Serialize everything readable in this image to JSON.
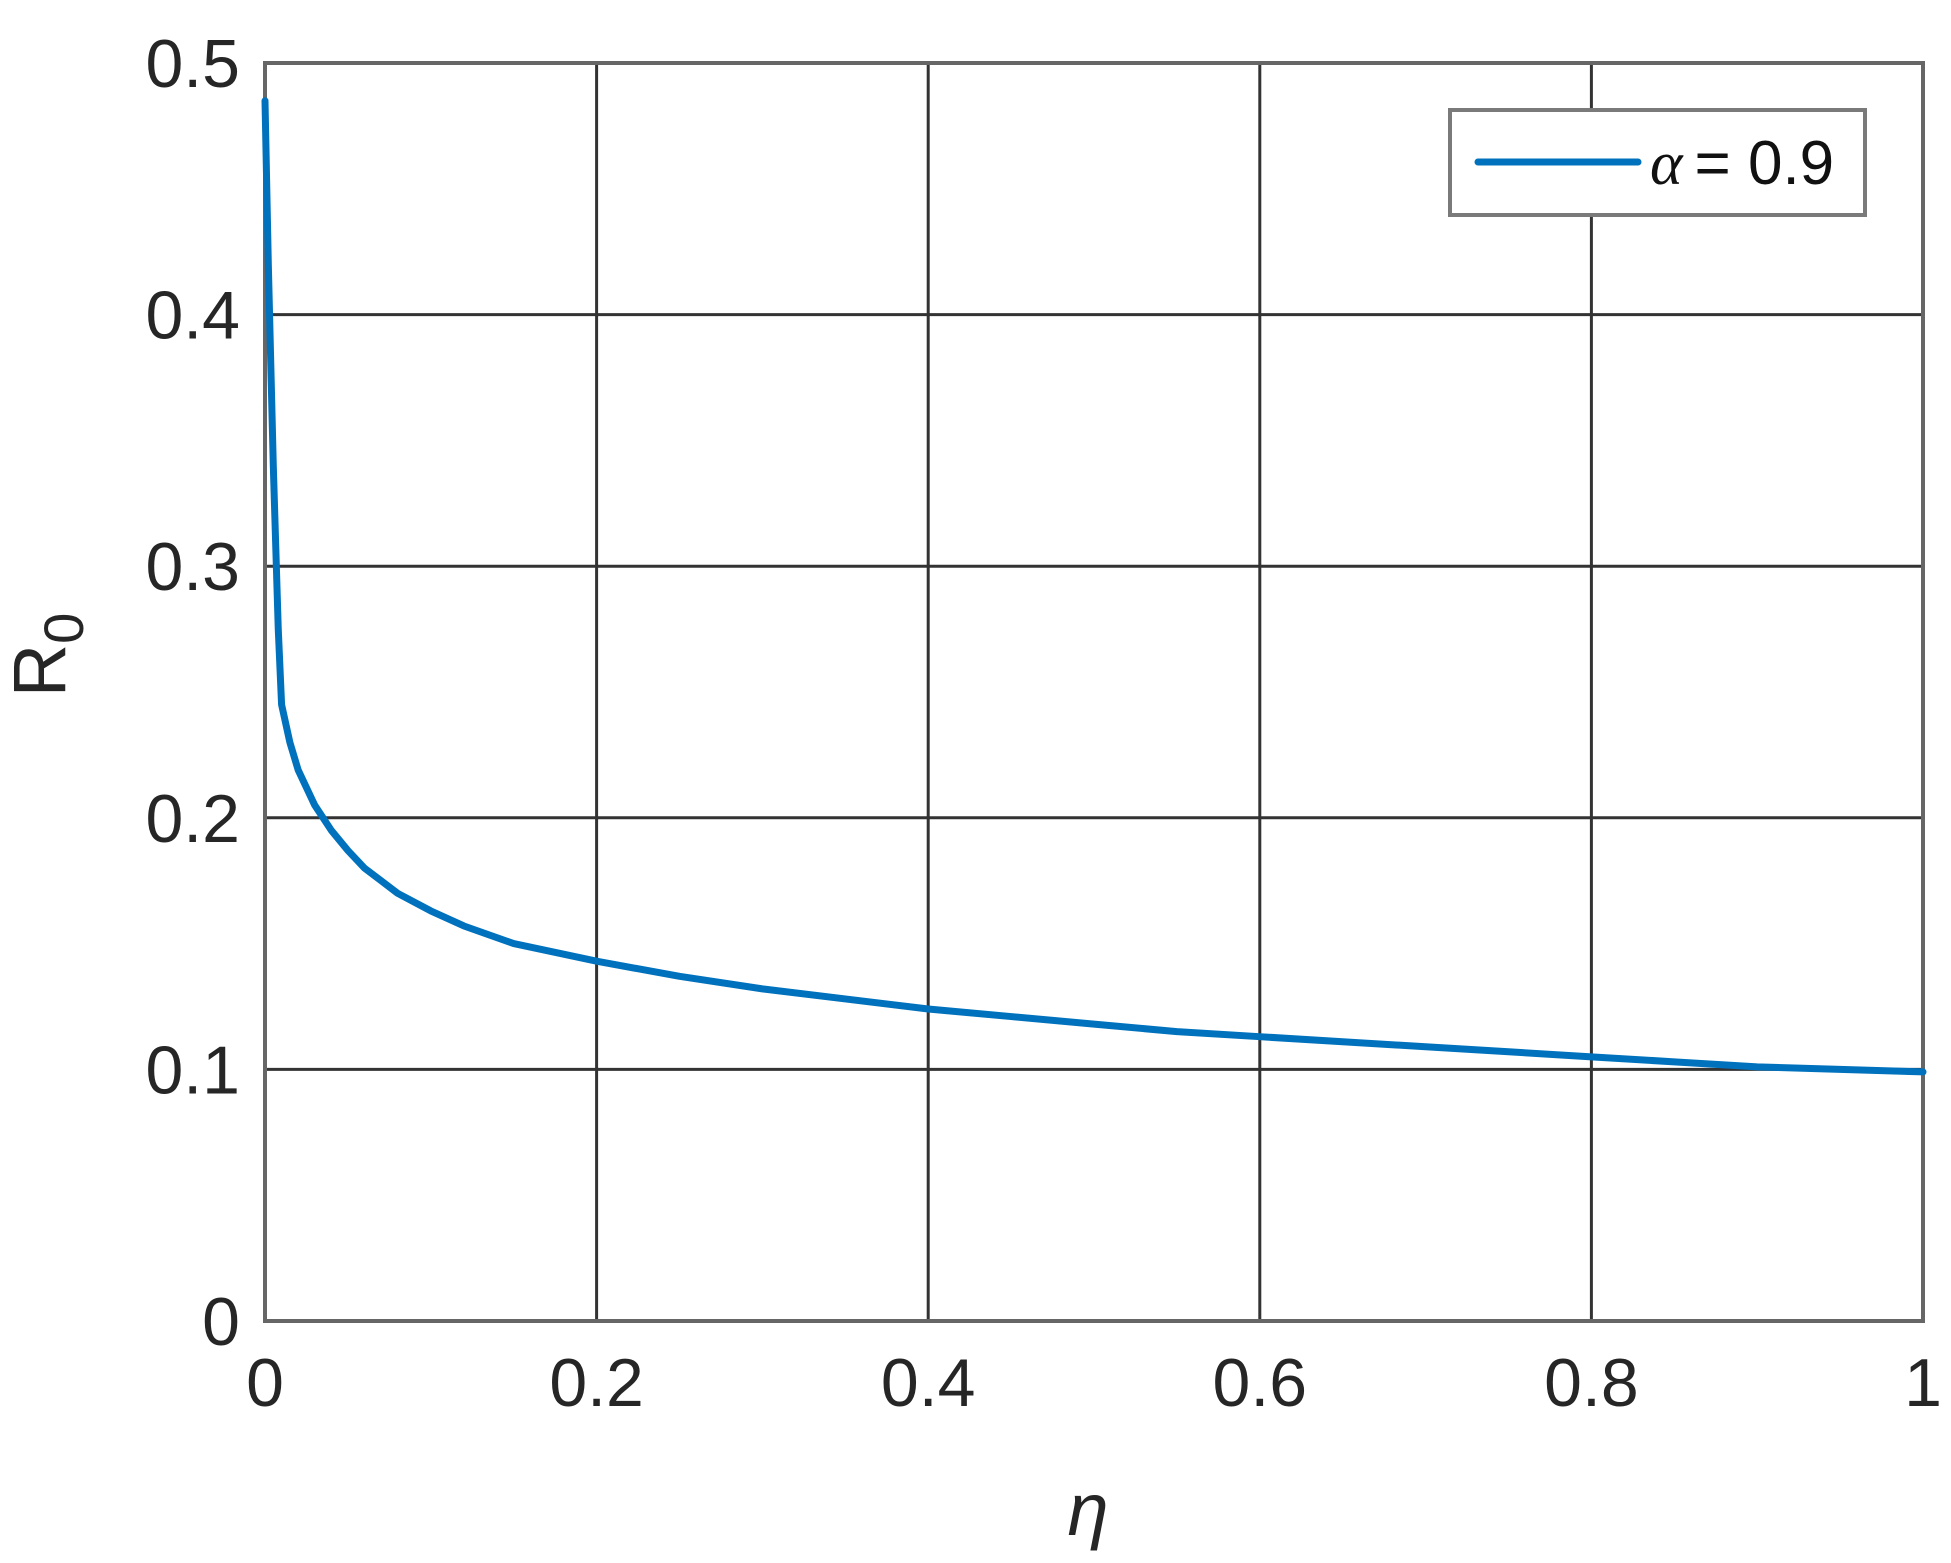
{
  "chart_data": {
    "type": "line",
    "title": "",
    "xlabel": "η",
    "ylabel": "R",
    "ylabel_subscript": "0",
    "xlim": [
      0,
      1
    ],
    "ylim": [
      0,
      0.5
    ],
    "xticks": [
      0,
      0.2,
      0.4,
      0.6,
      0.8,
      1
    ],
    "yticks": [
      0,
      0.1,
      0.2,
      0.3,
      0.4,
      0.5
    ],
    "xtick_labels": [
      "0",
      "0.2",
      "0.4",
      "0.6",
      "0.8",
      "1"
    ],
    "ytick_labels": [
      "0",
      "0.1",
      "0.2",
      "0.3",
      "0.4",
      "0.5"
    ],
    "grid": true,
    "legend_position": "top-right",
    "series": [
      {
        "name": "α = 0.9",
        "color": "#0072BD",
        "x": [
          0,
          0.002,
          0.005,
          0.008,
          0.01,
          0.015,
          0.02,
          0.03,
          0.04,
          0.05,
          0.06,
          0.08,
          0.1,
          0.12,
          0.15,
          0.2,
          0.25,
          0.3,
          0.35,
          0.4,
          0.45,
          0.5,
          0.55,
          0.6,
          0.65,
          0.7,
          0.75,
          0.8,
          0.85,
          0.9,
          0.95,
          1
        ],
        "y": [
          0.485,
          0.42,
          0.34,
          0.275,
          0.245,
          0.23,
          0.219,
          0.205,
          0.195,
          0.187,
          0.18,
          0.17,
          0.163,
          0.157,
          0.15,
          0.143,
          0.137,
          0.132,
          0.128,
          0.124,
          0.121,
          0.118,
          0.115,
          0.113,
          0.111,
          0.109,
          0.107,
          0.105,
          0.103,
          0.101,
          0.1,
          0.099
        ]
      }
    ],
    "legend_label_prefix": "α",
    "legend_label_rest": "= 0.9"
  }
}
